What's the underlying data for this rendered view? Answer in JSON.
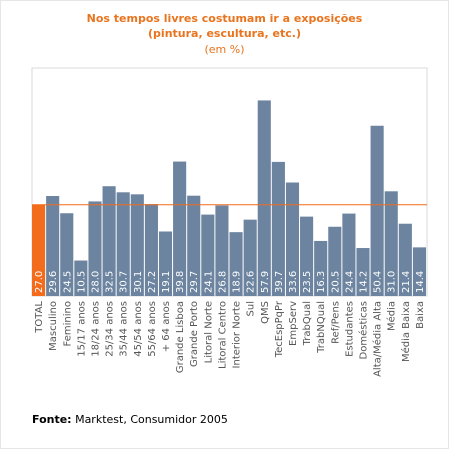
{
  "chart_data": {
    "type": "bar",
    "title": [
      "Nos tempos livres costumam ir a exposições",
      "(pintura, escultura, etc.)"
    ],
    "subtitle": "(em %)",
    "categories": [
      "TOTAL",
      "Masculino",
      "Feminino",
      "15/17 anos",
      "18/24 anos",
      "25/34 anos",
      "35/44 anos",
      "45/54 anos",
      "55/64 anos",
      "+ 64 anos",
      "Grande Lisboa",
      "Grande Porto",
      "Litoral Norte",
      "Litoral Centro",
      "Interior Norte",
      "Sul",
      "QMS",
      "TecEspPqPr",
      "EmpServ",
      "TrabQual",
      "TrabNQual",
      "Ref/Pens",
      "Estudantes",
      "Domésticas",
      "Alta/Média Alta",
      "Média",
      "Média Baixa",
      "Baixa"
    ],
    "values": [
      27.0,
      29.6,
      24.5,
      10.5,
      28.0,
      32.5,
      30.7,
      30.1,
      27.2,
      19.1,
      39.8,
      29.7,
      24.1,
      26.8,
      18.9,
      22.6,
      57.9,
      39.7,
      33.6,
      23.5,
      16.3,
      20.5,
      24.4,
      14.2,
      50.4,
      31.0,
      21.4,
      14.4
    ],
    "value_labels": [
      "27.0",
      "29.6",
      "24.5",
      "10.5",
      "28.0",
      "32.5",
      "30.7",
      "30.1",
      "27.2",
      "19.1",
      "39.8",
      "29.7",
      "24.1",
      "26.8",
      "18.9",
      "22.6",
      "57.9",
      "39.7",
      "33.6",
      "23.5",
      "16.3",
      "20.5",
      "24.4",
      "14.2",
      "50.4",
      "31.0",
      "21.4",
      "14.4"
    ],
    "highlight_index": 0,
    "reference_value": 27.0,
    "ylim": [
      0,
      67.5
    ],
    "grid": false,
    "legend": "none"
  },
  "colors": {
    "bar": "#6c84a0",
    "highlight": "#f26c1c",
    "reference_line": "#f26c1c",
    "title": "#e8741e",
    "bar_label": "#ffffff",
    "axis_label": "#555555"
  },
  "source": {
    "label": "Fonte:",
    "text": " Marktest, Consumidor 2005"
  }
}
